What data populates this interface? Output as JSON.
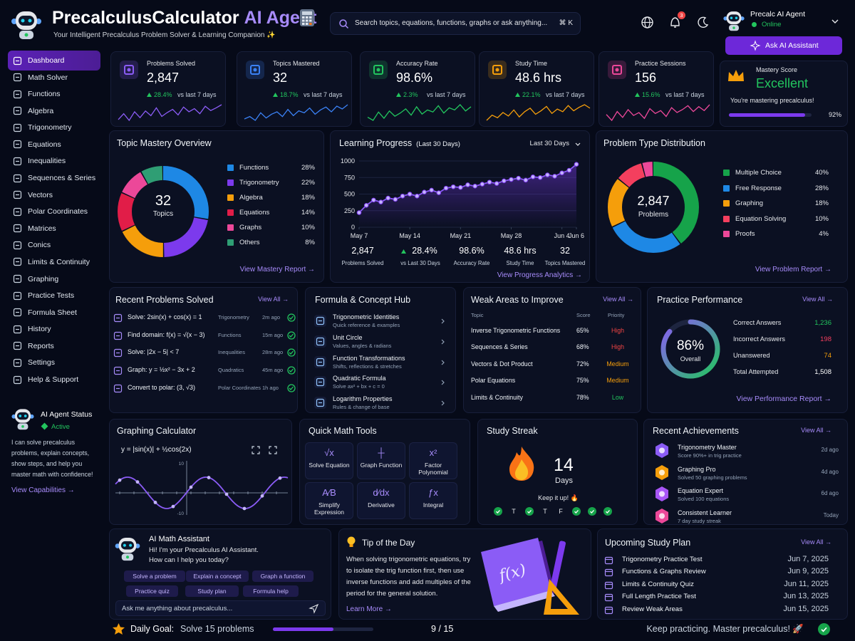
{
  "header": {
    "title": "PrecalculusCalculator",
    "title_accent": "AI Agent",
    "subtitle": "Your Intelligent Precalculus Problem Solver & Learning Companion ✨",
    "search": "Search topics, equations, functions, graphs or ask anything...",
    "shortcut": "⌘ K",
    "notifications": "3",
    "user": {
      "name": "Precalc AI Agent",
      "status": "Online"
    },
    "button": "Ask AI Assistant"
  },
  "sidebar": {
    "items": [
      "Dashboard",
      "Math Solver",
      "Functions",
      "Algebra",
      "Trigonometry",
      "Equations",
      "Inequalities",
      "Sequences & Series",
      "Vectors",
      "Polar Coordinates",
      "Matrices",
      "Conics",
      "Limits & Continuity",
      "Graphing",
      "Practice Tests",
      "Formula Sheet",
      "History",
      "Reports",
      "Settings",
      "Help & Support"
    ],
    "status": {
      "title": "AI Agent Status",
      "state": "Active",
      "text": "I can solve precalculus problems, explain concepts, show steps, and help you master math with confidence!",
      "link": "View Capabilities →"
    }
  },
  "stats": [
    {
      "label": "Problems Solved",
      "value": "2,847",
      "change": "28.4%",
      "period": "vs last 7 days",
      "color": "#8b5cf6",
      "trend": [
        40,
        55,
        38,
        60,
        45,
        62,
        50,
        70,
        48,
        58,
        66,
        52,
        72,
        60,
        68,
        55,
        74,
        63,
        70,
        78
      ]
    },
    {
      "label": "Topics Mastered",
      "value": "32",
      "change": "18.7%",
      "period": "vs last 7 days",
      "color": "#3b82f6",
      "trend": [
        45,
        50,
        42,
        58,
        47,
        55,
        60,
        50,
        65,
        52,
        62,
        58,
        68,
        55,
        64,
        70,
        60,
        72,
        66,
        75
      ]
    },
    {
      "label": "Accuracy Rate",
      "value": "98.6%",
      "change": "2.3%",
      "period": "vs last 7 days",
      "color": "#22c55e",
      "trend": [
        50,
        44,
        60,
        48,
        62,
        52,
        58,
        66,
        54,
        70,
        56,
        64,
        60,
        72,
        58,
        68,
        64,
        74,
        62,
        70
      ]
    },
    {
      "label": "Study Time",
      "value": "48.6 hrs",
      "change": "22.1%",
      "period": "vs last 7 days",
      "color": "#f59e0b",
      "trend": [
        38,
        50,
        44,
        56,
        48,
        62,
        46,
        58,
        66,
        52,
        60,
        70,
        54,
        64,
        58,
        72,
        60,
        68,
        74,
        66
      ]
    },
    {
      "label": "Practice Sessions",
      "value": "156",
      "change": "15.6%",
      "period": "vs last 7 days",
      "color": "#ec4899",
      "trend": [
        52,
        40,
        58,
        46,
        62,
        50,
        56,
        44,
        64,
        54,
        60,
        48,
        66,
        56,
        62,
        70,
        58,
        68,
        60,
        72
      ]
    }
  ],
  "mastery_score": {
    "label": "Mastery Score",
    "value": "Excellent",
    "text": "You're mastering precalculus!",
    "progress": 92,
    "progress_label": "92%"
  },
  "topic_mastery": {
    "title": "Topic Mastery Overview",
    "center_value": "32",
    "center_label": "Topics",
    "link": "View Mastery Report →",
    "segments": [
      {
        "name": "Functions",
        "color": "#1e88e5",
        "value": 28,
        "label": "28%"
      },
      {
        "name": "Trigonometry",
        "color": "#7c3aed",
        "value": 22,
        "label": "22%"
      },
      {
        "name": "Algebra",
        "color": "#f59e0b",
        "value": 18,
        "label": "18%"
      },
      {
        "name": "Equations",
        "color": "#e11d48",
        "value": 14,
        "label": "14%"
      },
      {
        "name": "Graphs",
        "color": "#ec4899",
        "value": 10,
        "label": "10%"
      },
      {
        "name": "Others",
        "color": "#2f9e74",
        "value": 8,
        "label": "8%"
      }
    ]
  },
  "learning_progress": {
    "title": "Learning Progress",
    "subtitle": "(Last 30 Days)",
    "range": "Last 30 Days",
    "x": [
      0,
      1,
      2,
      3,
      4,
      5,
      6,
      7,
      8,
      9,
      10,
      11,
      12,
      13,
      14,
      15,
      16,
      17,
      18,
      19,
      20,
      21,
      22,
      23,
      24,
      25,
      26,
      27,
      28,
      29,
      30
    ],
    "values": [
      220,
      330,
      410,
      380,
      440,
      420,
      470,
      500,
      470,
      530,
      560,
      520,
      590,
      610,
      600,
      640,
      620,
      650,
      680,
      660,
      700,
      720,
      740,
      710,
      760,
      750,
      790,
      770,
      820,
      860,
      950
    ],
    "xlim": [
      0,
      30
    ],
    "ylim": [
      0,
      1000
    ],
    "yticks": [
      0,
      250,
      500,
      750,
      1000
    ],
    "xticks": [
      {
        "value": 0,
        "label": "May 7"
      },
      {
        "value": 7,
        "label": "May 14"
      },
      {
        "value": 14,
        "label": "May 21"
      },
      {
        "value": 21,
        "label": "May 28"
      },
      {
        "value": 28,
        "label": "Jun 4"
      },
      {
        "value": 30,
        "label": "Jun 6"
      }
    ],
    "summary": [
      {
        "value": "2,847",
        "label": "Problems Solved"
      },
      {
        "value": "28.4%",
        "label": "vs Last 30 Days"
      },
      {
        "value": "98.6%",
        "label": "Accuracy Rate"
      },
      {
        "value": "48.6 hrs",
        "label": "Study Time"
      },
      {
        "value": "32",
        "label": "Topics Mastered"
      }
    ],
    "link": "View Progress Analytics →"
  },
  "problem_types": {
    "title": "Problem Type Distribution",
    "center_value": "2,847",
    "center_label": "Problems",
    "link": "View Problem Report →",
    "segments": [
      {
        "name": "Multiple Choice",
        "color": "#16a34a",
        "value": 40,
        "label": "40%"
      },
      {
        "name": "Free Response",
        "color": "#1e88e5",
        "value": 28,
        "label": "28%"
      },
      {
        "name": "Graphing",
        "color": "#f59e0b",
        "value": 18,
        "label": "18%"
      },
      {
        "name": "Equation Solving",
        "color": "#f43f5e",
        "value": 10,
        "label": "10%"
      },
      {
        "name": "Proofs",
        "color": "#ec4899",
        "value": 4,
        "label": "4%"
      }
    ]
  },
  "recent_problems": {
    "title": "Recent Problems Solved",
    "link": "View All →",
    "items": [
      {
        "problem": "Solve: 2sin(x) + cos(x) = 1",
        "topic": "Trigonometry",
        "time": "2m ago"
      },
      {
        "problem": "Find domain: f(x) = √(x − 3)",
        "topic": "Functions",
        "time": "15m ago"
      },
      {
        "problem": "Solve: |2x − 5| < 7",
        "topic": "Inequalities",
        "time": "28m ago"
      },
      {
        "problem": "Graph: y = ½x² − 3x + 2",
        "topic": "Quadratics",
        "time": "45m ago"
      },
      {
        "problem": "Convert to polar: (3, √3)",
        "topic": "Polar Coordinates",
        "time": "1h ago"
      }
    ]
  },
  "formula_hub": {
    "title": "Formula & Concept Hub",
    "items": [
      {
        "title": "Trigonometric Identities",
        "desc": "Quick reference & examples"
      },
      {
        "title": "Unit Circle",
        "desc": "Values, angles & radians"
      },
      {
        "title": "Function Transformations",
        "desc": "Shifts, reflections & stretches"
      },
      {
        "title": "Quadratic Formula",
        "desc": "Solve ax² + bx + c = 0"
      },
      {
        "title": "Logarithm Properties",
        "desc": "Rules & change of base"
      }
    ]
  },
  "weak_areas": {
    "title": "Weak Areas to Improve",
    "link": "View All →",
    "headers": [
      "Topic",
      "Score",
      "Priority"
    ],
    "rows": [
      {
        "topic": "Inverse Trigonometric Functions",
        "score": "65%",
        "priority": "High",
        "color": "#ef4444"
      },
      {
        "topic": "Sequences & Series",
        "score": "68%",
        "priority": "High",
        "color": "#ef4444"
      },
      {
        "topic": "Vectors & Dot Product",
        "score": "72%",
        "priority": "Medium",
        "color": "#f59e0b"
      },
      {
        "topic": "Polar Equations",
        "score": "75%",
        "priority": "Medium",
        "color": "#f59e0b"
      },
      {
        "topic": "Limits & Continuity",
        "score": "78%",
        "priority": "Low",
        "color": "#22c55e"
      }
    ]
  },
  "practice_performance": {
    "title": "Practice Performance",
    "link": "View All →",
    "percent": 86,
    "percent_label": "86%",
    "center_label": "Overall",
    "report_link": "View Performance Report →",
    "rows": [
      {
        "label": "Correct Answers",
        "value": "1,236",
        "color": "#22c55e"
      },
      {
        "label": "Incorrect Answers",
        "value": "198",
        "color": "#f43f5e"
      },
      {
        "label": "Unanswered",
        "value": "74",
        "color": "#f59e0b"
      },
      {
        "label": "Total Attempted",
        "value": "1,508",
        "color": "#ffffff"
      }
    ]
  },
  "graphing": {
    "title": "Graphing Calculator",
    "equation": "y = |sin(x)| + ½cos(2x)",
    "y_top": "10",
    "y_bottom": "-10"
  },
  "quick_tools": {
    "title": "Quick Math Tools",
    "items": [
      {
        "icon": "√x",
        "label": "Solve Equation"
      },
      {
        "icon": "┼",
        "label": "Graph Function"
      },
      {
        "icon": "x²",
        "label": "Factor Polynomial"
      },
      {
        "icon": "A⁄B",
        "label": "Simplify Expression"
      },
      {
        "icon": "d⁄dx",
        "label": "Derivative"
      },
      {
        "icon": "ƒx",
        "label": "Integral"
      }
    ]
  },
  "study_streak": {
    "title": "Study Streak",
    "value": "14",
    "unit": "Days",
    "message": "Keep it up! 🔥",
    "days": [
      {
        "done": true
      },
      {
        "label": "T"
      },
      {
        "done": true
      },
      {
        "label": "T"
      },
      {
        "label": "F"
      },
      {
        "done": true
      },
      {
        "done": true
      },
      {
        "done": true
      }
    ]
  },
  "achievements": {
    "title": "Recent Achievements",
    "link": "View All →",
    "items": [
      {
        "title": "Trigonometry Master",
        "desc": "Score 90%+ in trig practice",
        "time": "2d ago",
        "color": "#8b5cf6"
      },
      {
        "title": "Graphing Pro",
        "desc": "Solved 50 graphing problems",
        "time": "4d ago",
        "color": "#f59e0b"
      },
      {
        "title": "Equation Expert",
        "desc": "Solved 100 equations",
        "time": "6d ago",
        "color": "#a855f7"
      },
      {
        "title": "Consistent Learner",
        "desc": "7 day study streak",
        "time": "Today",
        "color": "#ec4899"
      }
    ]
  },
  "assistant": {
    "title": "AI Math Assistant",
    "greeting": "Hi! I'm your Precalculus AI Assistant.",
    "question": "How can I help you today?",
    "chips": [
      "Solve a problem",
      "Explain a concept",
      "Graph a function",
      "Practice quiz",
      "Study plan",
      "Formula help"
    ],
    "placeholder": "Ask me anything about precalculus..."
  },
  "tip": {
    "title": "Tip of the Day",
    "text": "When solving trigonometric equations, try to isolate the trig function first, then use inverse functions and add multiples of the period for the general solution.",
    "link": "Learn More →",
    "illustration": "f(x)"
  },
  "study_plan": {
    "title": "Upcoming Study Plan",
    "link": "View All →",
    "items": [
      {
        "title": "Trigonometry Practice Test",
        "date": "Jun 7, 2025"
      },
      {
        "title": "Functions & Graphs Review",
        "date": "Jun 9, 2025"
      },
      {
        "title": "Limits & Continuity Quiz",
        "date": "Jun 11, 2025"
      },
      {
        "title": "Full Length Practice Test",
        "date": "Jun 13, 2025"
      },
      {
        "title": "Review Weak Areas",
        "date": "Jun 15, 2025"
      }
    ]
  },
  "footer": {
    "label": "Daily Goal:",
    "goal": "Solve 15 problems",
    "done": 9,
    "total": 15,
    "progress_label": "9 / 15",
    "motto": "Keep practicing. Master precalculus! 🚀"
  }
}
